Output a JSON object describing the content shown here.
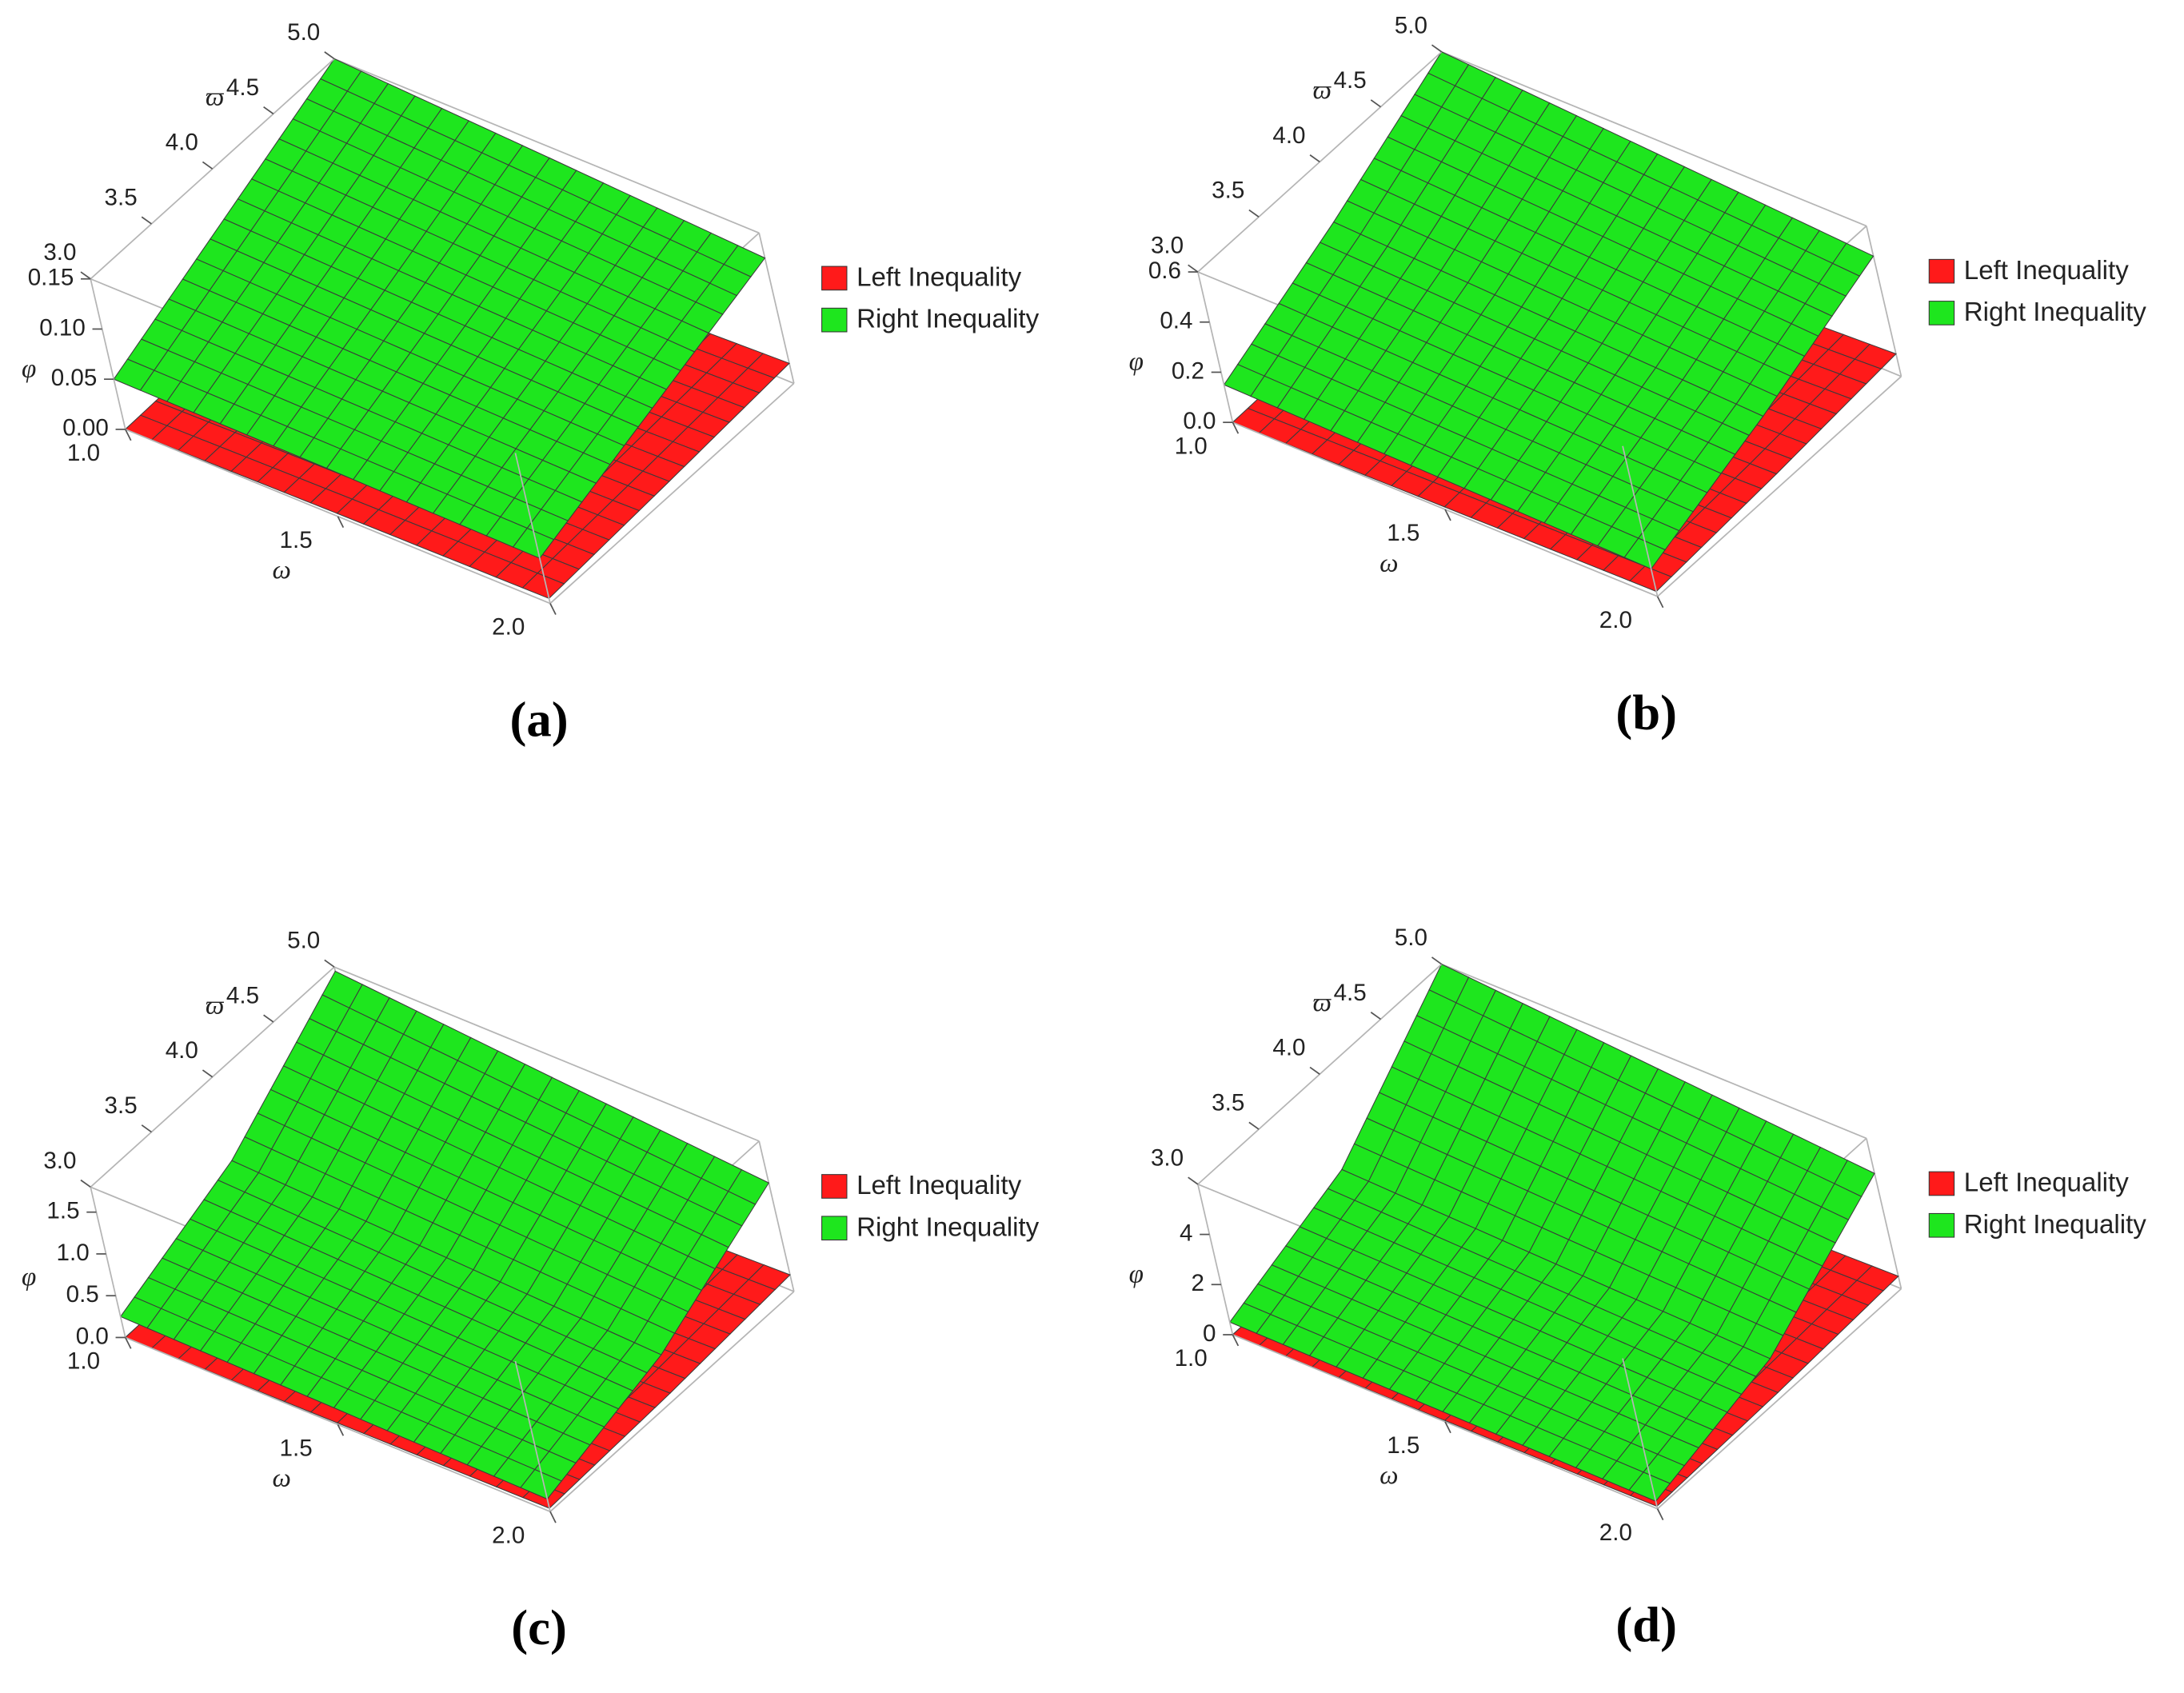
{
  "chart_data": [
    {
      "type": "surface",
      "caption": "(a)",
      "x_label": "ω",
      "y_label": "ϖ",
      "z_label": "φ",
      "x": [
        1,
        1.5,
        2
      ],
      "y": [
        3,
        4,
        5
      ],
      "xlim": [
        1,
        2
      ],
      "ylim": [
        3,
        5
      ],
      "zlim": [
        0,
        0.15
      ],
      "xticks": [
        {
          "value": 1,
          "label": "1.0"
        },
        1.5,
        {
          "value": 2,
          "label": "2.0"
        }
      ],
      "yticks": [
        {
          "value": 3,
          "label": "3.0"
        },
        3.5,
        {
          "value": 4,
          "label": "4.0"
        },
        4.5,
        {
          "value": 5,
          "label": "5.0"
        }
      ],
      "zticks": [
        {
          "value": 0,
          "label": "0.00"
        },
        0.05,
        {
          "value": 0.1,
          "label": "0.10"
        },
        0.15
      ],
      "series": [
        {
          "name": "Left Inequality",
          "color": "#ff1a1a",
          "values": [
            [
              0,
              0.003,
              0.006
            ],
            [
              0.003,
              0.007,
              0.012
            ],
            [
              0.005,
              0.012,
              0.02
            ]
          ]
        },
        {
          "name": "Right Inequality",
          "color": "#1ee61e",
          "values": [
            [
              0.05,
              0.1,
              0.15
            ],
            [
              0.048,
              0.092,
              0.138
            ],
            [
              0.045,
              0.085,
              0.125
            ]
          ]
        }
      ]
    },
    {
      "type": "surface",
      "caption": "(b)",
      "x_label": "ω",
      "y_label": "ϖ",
      "z_label": "φ",
      "x": [
        1,
        1.5,
        2
      ],
      "y": [
        3,
        4,
        5
      ],
      "xlim": [
        1,
        2
      ],
      "ylim": [
        3,
        5
      ],
      "zlim": [
        0,
        0.6
      ],
      "xticks": [
        {
          "value": 1,
          "label": "1.0"
        },
        1.5,
        {
          "value": 2,
          "label": "2.0"
        }
      ],
      "yticks": [
        {
          "value": 3,
          "label": "3.0"
        },
        3.5,
        {
          "value": 4,
          "label": "4.0"
        },
        4.5,
        {
          "value": 5,
          "label": "5.0"
        }
      ],
      "zticks": [
        {
          "value": 0,
          "label": "0.0"
        },
        0.2,
        0.4,
        0.6
      ],
      "series": [
        {
          "name": "Left Inequality",
          "color": "#ff1a1a",
          "values": [
            [
              0,
              0.01,
              0.02
            ],
            [
              0.01,
              0.03,
              0.05
            ],
            [
              0.02,
              0.05,
              0.09
            ]
          ]
        },
        {
          "name": "Right Inequality",
          "color": "#1ee61e",
          "values": [
            [
              0.15,
              0.36,
              0.6
            ],
            [
              0.13,
              0.32,
              0.54
            ],
            [
              0.11,
              0.28,
              0.48
            ]
          ]
        }
      ]
    },
    {
      "type": "surface",
      "caption": "(c)",
      "x_label": "ω",
      "y_label": "ϖ",
      "z_label": "φ",
      "x": [
        1,
        1.5,
        2
      ],
      "y": [
        3,
        4,
        5
      ],
      "xlim": [
        1,
        2
      ],
      "ylim": [
        3,
        5
      ],
      "zlim": [
        0,
        1.8
      ],
      "xticks": [
        {
          "value": 1,
          "label": "1.0"
        },
        1.5,
        {
          "value": 2,
          "label": "2.0"
        }
      ],
      "yticks": [
        {
          "value": 3,
          "label": "3.0"
        },
        3.5,
        {
          "value": 4,
          "label": "4.0"
        },
        4.5,
        {
          "value": 5,
          "label": "5.0"
        }
      ],
      "zticks": [
        {
          "value": 0,
          "label": "0.0"
        },
        0.5,
        {
          "value": 1,
          "label": "1.0"
        },
        1.5
      ],
      "series": [
        {
          "name": "Left Inequality",
          "color": "#ff1a1a",
          "values": [
            [
              0,
              0.02,
              0.05
            ],
            [
              0.02,
              0.06,
              0.12
            ],
            [
              0.04,
              0.1,
              0.2
            ]
          ]
        },
        {
          "name": "Right Inequality",
          "color": "#1ee61e",
          "values": [
            [
              0.25,
              0.8,
              1.75
            ],
            [
              0.2,
              0.68,
              1.52
            ],
            [
              0.15,
              0.56,
              1.3
            ]
          ]
        }
      ]
    },
    {
      "type": "surface",
      "caption": "(d)",
      "x_label": "ω",
      "y_label": "ϖ",
      "z_label": "φ",
      "x": [
        1,
        1.5,
        2
      ],
      "y": [
        3,
        4,
        5
      ],
      "xlim": [
        1,
        2
      ],
      "ylim": [
        3,
        5
      ],
      "zlim": [
        0,
        6
      ],
      "xticks": [
        {
          "value": 1,
          "label": "1.0"
        },
        1.5,
        {
          "value": 2,
          "label": "2.0"
        }
      ],
      "yticks": [
        {
          "value": 3,
          "label": "3.0"
        },
        3.5,
        {
          "value": 4,
          "label": "4.0"
        },
        4.5,
        {
          "value": 5,
          "label": "5.0"
        }
      ],
      "zticks": [
        0,
        2,
        4
      ],
      "series": [
        {
          "name": "Left Inequality",
          "color": "#ff1a1a",
          "values": [
            [
              0,
              0.05,
              0.12
            ],
            [
              0.05,
              0.15,
              0.3
            ],
            [
              0.1,
              0.25,
              0.5
            ]
          ]
        },
        {
          "name": "Right Inequality",
          "color": "#1ee61e",
          "values": [
            [
              0.5,
              2.2,
              6
            ],
            [
              0.4,
              1.9,
              5.3
            ],
            [
              0.3,
              1.6,
              4.6
            ]
          ]
        }
      ]
    }
  ]
}
